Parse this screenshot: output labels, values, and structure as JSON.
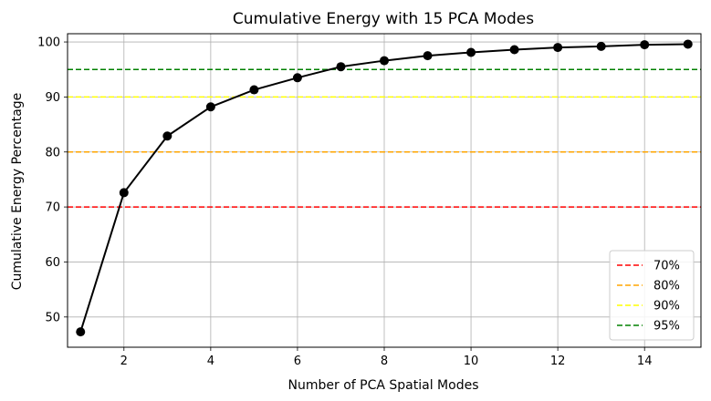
{
  "chart_data": {
    "type": "line",
    "title": "Cumulative Energy with 15 PCA Modes",
    "xlabel": "Number of PCA Spatial Modes",
    "ylabel": "Cumulative Energy Percentage",
    "xlim": [
      0.7,
      15.3
    ],
    "ylim": [
      44.5,
      101.5
    ],
    "xticks": [
      2,
      4,
      6,
      8,
      10,
      12,
      14
    ],
    "yticks": [
      50,
      60,
      70,
      80,
      90,
      100
    ],
    "grid": true,
    "legend_position": "bottom-right",
    "series": [
      {
        "color": "#000000",
        "marker": "circle",
        "x": [
          1,
          2,
          3,
          4,
          5,
          6,
          7,
          8,
          9,
          10,
          11,
          12,
          13,
          14,
          15
        ],
        "values": [
          47.3,
          72.6,
          82.9,
          88.2,
          91.3,
          93.5,
          95.5,
          96.6,
          97.5,
          98.1,
          98.6,
          99.0,
          99.2,
          99.5,
          99.6
        ]
      }
    ],
    "thresholds": [
      {
        "label": "70%",
        "value": 70,
        "color": "#ff0000"
      },
      {
        "label": "80%",
        "value": 80,
        "color": "#ffa500"
      },
      {
        "label": "90%",
        "value": 90,
        "color": "#ffff00"
      },
      {
        "label": "95%",
        "value": 95,
        "color": "#008000"
      }
    ]
  }
}
